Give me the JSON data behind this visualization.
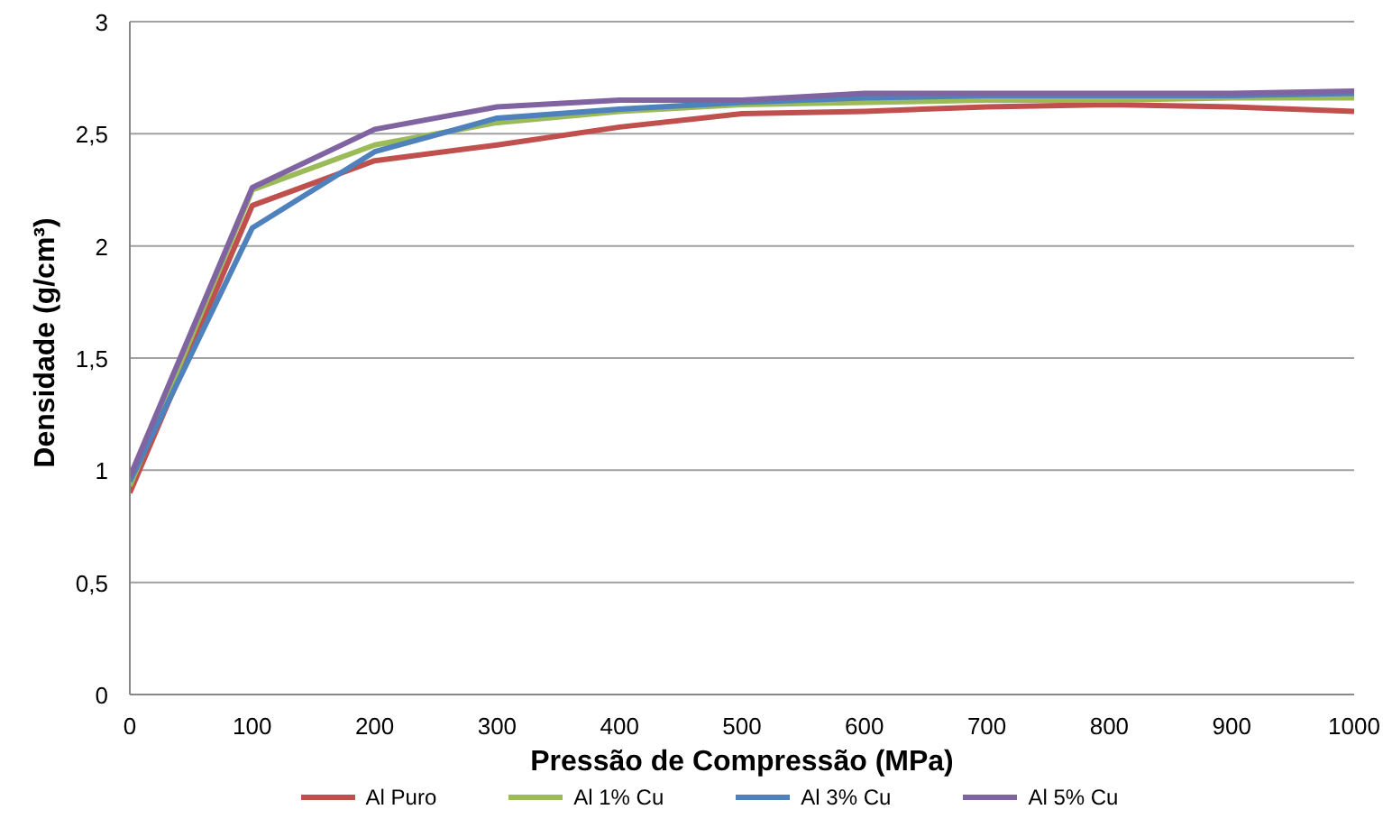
{
  "chart_data": {
    "type": "line",
    "xlabel": "Pressão de Compressão (MPa)",
    "ylabel": "Densidade (g/cm³)",
    "x": [
      0,
      100,
      200,
      300,
      400,
      500,
      600,
      700,
      800,
      900,
      1000
    ],
    "series": [
      {
        "name": "Al Puro",
        "color": "#c0504d",
        "values": [
          0.9,
          2.18,
          2.38,
          2.45,
          2.53,
          2.59,
          2.6,
          2.62,
          2.63,
          2.62,
          2.6
        ]
      },
      {
        "name": "Al 1% Cu",
        "color": "#9bbb59",
        "values": [
          0.93,
          2.25,
          2.45,
          2.55,
          2.6,
          2.63,
          2.64,
          2.65,
          2.65,
          2.66,
          2.66
        ]
      },
      {
        "name": "Al 3% Cu",
        "color": "#4f81bd",
        "values": [
          0.95,
          2.08,
          2.42,
          2.57,
          2.61,
          2.64,
          2.66,
          2.67,
          2.67,
          2.67,
          2.68
        ]
      },
      {
        "name": "Al 5% Cu",
        "color": "#8064a2",
        "values": [
          0.97,
          2.26,
          2.52,
          2.62,
          2.65,
          2.65,
          2.68,
          2.68,
          2.68,
          2.68,
          2.69
        ]
      }
    ],
    "xlim": [
      0,
      1000
    ],
    "xticks": [
      0,
      100,
      200,
      300,
      400,
      500,
      600,
      700,
      800,
      900,
      1000
    ],
    "ylim": [
      0,
      3
    ],
    "yticks": [
      0,
      {
        "value": 0.5,
        "label": "0,5"
      },
      1,
      {
        "value": 1.5,
        "label": "1,5"
      },
      2,
      {
        "value": 2.5,
        "label": "2,5"
      },
      3
    ],
    "grid": "y",
    "legend": "bottom",
    "marker": "none",
    "line_style": "solid"
  }
}
